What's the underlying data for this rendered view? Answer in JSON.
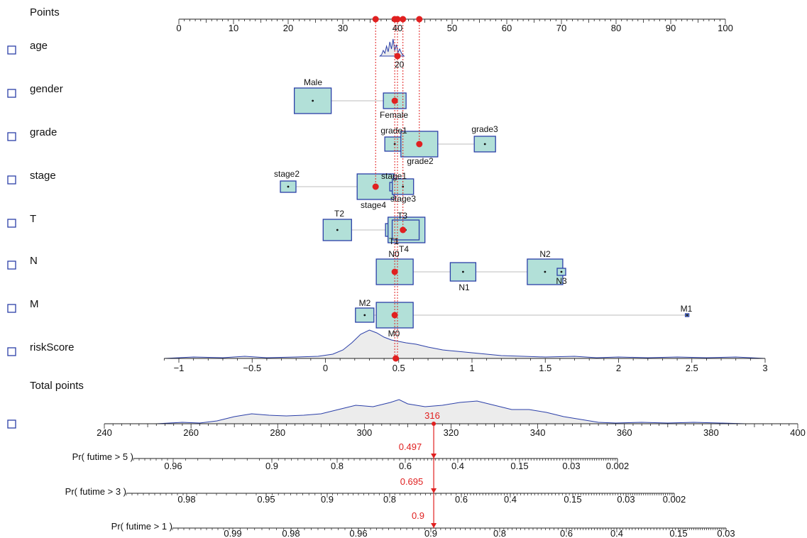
{
  "colors": {
    "box_fill": "#b2e0d8",
    "box_stroke": "#2b3fa8",
    "density_fill": "#ececec",
    "density_stroke": "#2b3fa8",
    "highlight": "#e02020",
    "checkbox": "#2b3fa8"
  },
  "chart_data": {
    "type": "nomogram",
    "points_axis": {
      "label": "Points",
      "range": [
        0,
        100
      ],
      "ticks": [
        0,
        10,
        20,
        30,
        40,
        50,
        60,
        70,
        80,
        90,
        100
      ],
      "markers": [
        36,
        39.5,
        40,
        41,
        44
      ]
    },
    "variables": [
      {
        "name": "age",
        "kind": "density",
        "level_labels": [
          "20"
        ],
        "selected_points": 40
      },
      {
        "name": "gender",
        "kind": "categorical",
        "levels": [
          {
            "label": "Male",
            "points": 24.5
          },
          {
            "label": "Female",
            "points": 39.5
          }
        ],
        "selected": "Female"
      },
      {
        "name": "grade",
        "kind": "categorical",
        "levels": [
          {
            "label": "grade1",
            "points": 39.5
          },
          {
            "label": "grade2",
            "points": 44
          },
          {
            "label": "grade3",
            "points": 56
          }
        ],
        "selected": "grade2"
      },
      {
        "name": "stage",
        "kind": "categorical",
        "levels": [
          {
            "label": "stage2",
            "points": 20
          },
          {
            "label": "stage4",
            "points": 36
          },
          {
            "label": "stage1",
            "points": 39.5
          },
          {
            "label": "stage3",
            "points": 41
          }
        ],
        "selected": "stage4"
      },
      {
        "name": "T",
        "kind": "categorical",
        "levels": [
          {
            "label": "T2",
            "points": 29
          },
          {
            "label": "T1",
            "points": 39.5
          },
          {
            "label": "T3",
            "points": 41
          },
          {
            "label": "T4",
            "points": 41.5
          }
        ],
        "selected": "T3"
      },
      {
        "name": "N",
        "kind": "categorical",
        "levels": [
          {
            "label": "N0",
            "points": 39.5
          },
          {
            "label": "N1",
            "points": 52
          },
          {
            "label": "N2",
            "points": 67
          },
          {
            "label": "N3",
            "points": 70
          }
        ],
        "selected": "N0"
      },
      {
        "name": "M",
        "kind": "categorical",
        "levels": [
          {
            "label": "M2",
            "points": 34
          },
          {
            "label": "M0",
            "points": 39.5
          },
          {
            "label": "M1",
            "points": 93
          }
        ],
        "selected": "M0"
      },
      {
        "name": "riskScore",
        "kind": "continuous",
        "range": [
          -1.1,
          3
        ],
        "ticks": [
          -1,
          -0.5,
          0,
          0.5,
          1,
          1.5,
          2,
          2.5,
          3
        ],
        "selected_value": 0.48
      }
    ],
    "total_points": {
      "label": "Total points",
      "range": [
        240,
        400
      ],
      "ticks": [
        240,
        260,
        280,
        300,
        320,
        340,
        360,
        380,
        400
      ],
      "selected_value": 316,
      "selected_label": "316"
    },
    "probabilities": [
      {
        "label": "Pr( futime > 5 )",
        "tick_labels": [
          "0.96",
          "0.9",
          "0.8",
          "0.6",
          "0.4",
          "0.15",
          "0.03",
          "0.002"
        ],
        "selected_label": "0.497"
      },
      {
        "label": "Pr( futime > 3 )",
        "tick_labels": [
          "0.98",
          "0.95",
          "0.9",
          "0.8",
          "0.6",
          "0.4",
          "0.15",
          "0.03",
          "0.002"
        ],
        "selected_label": "0.695"
      },
      {
        "label": "Pr( futime > 1 )",
        "tick_labels": [
          "0.99",
          "0.98",
          "0.96",
          "0.9",
          "0.8",
          "0.6",
          "0.4",
          "0.15",
          "0.03"
        ],
        "selected_label": "0.9"
      }
    ]
  }
}
